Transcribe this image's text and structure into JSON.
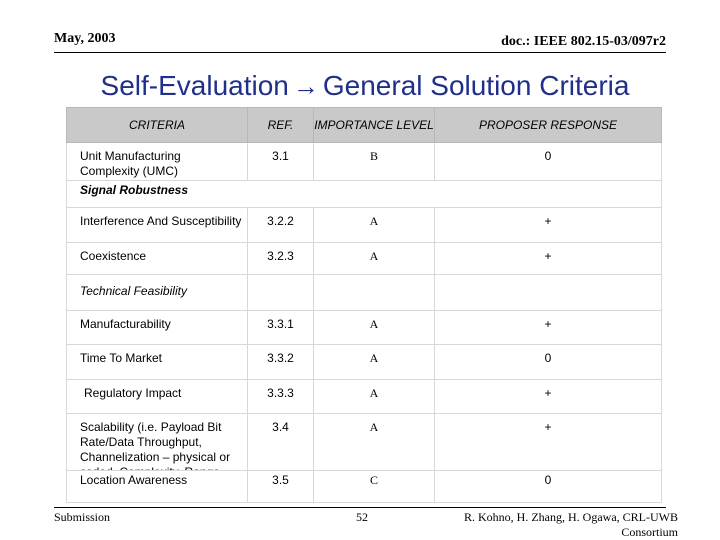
{
  "header": {
    "date": "May, 2003",
    "doc": "doc.: IEEE 802.15-03/097r2"
  },
  "title": {
    "left": "Self-Evaluation",
    "arrow": "→",
    "right": "General Solution Criteria"
  },
  "columns": {
    "criteria": "CRITERIA",
    "ref": "REF.",
    "importance": "IMPORTANCE LEVEL",
    "response": "PROPOSER RESPONSE"
  },
  "rows": [
    {
      "criteria": "Unit Manufacturing Complexity (UMC)",
      "ref": "3.1",
      "importance": "B",
      "response": "0"
    },
    {
      "section": "Signal Robustness"
    },
    {
      "criteria": "Interference And Susceptibility",
      "ref": "3.2.2",
      "importance": "A",
      "response": "+"
    },
    {
      "criteria": "Coexistence",
      "ref": "3.2.3",
      "importance": "A",
      "response": "+"
    },
    {
      "section": "Technical Feasibility"
    },
    {
      "criteria": "Manufacturability",
      "ref": "3.3.1",
      "importance": "A",
      "response": "+"
    },
    {
      "criteria": "Time To Market",
      "ref": "3.3.2",
      "importance": "A",
      "response": "0"
    },
    {
      "criteria": "Regulatory Impact",
      "ref": "3.3.3",
      "importance": "A",
      "response": "+"
    },
    {
      "criteria": "Scalability (i.e. Payload Bit Rate/Data Throughput, Channelization – physical or coded, Complexity, Range, Frequencies of Operation, Bandwidth of Operation, Power Consumption)",
      "ref": "3.4",
      "importance": "A",
      "response": "+"
    },
    {
      "criteria": "Location Awareness",
      "ref": "3.5",
      "importance": "C",
      "response": "0"
    }
  ],
  "footer": {
    "left": "Submission",
    "page": "52",
    "authors_line1": "R. Kohno, H. Zhang, H. Ogawa, CRL-UWB",
    "authors_line2": "Consortium"
  }
}
